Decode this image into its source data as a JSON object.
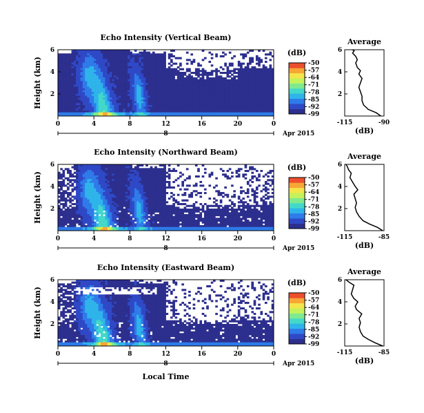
{
  "chart_data": [
    {
      "type": "heatmap",
      "title": "Echo Intensity (Vertical Beam)",
      "xlabel": "",
      "ylabel": "Height (km)",
      "xlim": [
        0,
        24
      ],
      "ylim": [
        0,
        6
      ],
      "x_ticks": [
        "0",
        "4",
        "8",
        "12",
        "16",
        "20",
        "0"
      ],
      "y_ticks": [
        "2",
        "4",
        "6"
      ],
      "date_label": "8",
      "date_suffix": "Apr 2015",
      "colorbar": {
        "title": "(dB)",
        "ticks": [
          "-50",
          "-57",
          "-64",
          "-71",
          "-78",
          "-85",
          "-92",
          "-99"
        ],
        "range": [
          -99,
          -50
        ]
      },
      "description": "background about -95 dB below about 5.5 km; enhanced echo plumes near 3-6 h and 9-10 h reaching about 5 km; strongest near surface around 5-6 h; no data above about 4 km after 12 h"
    },
    {
      "type": "line",
      "title": "Average",
      "xlabel": "(dB)",
      "ylabel": "",
      "xlim": [
        -115,
        -90
      ],
      "x_ticks": [
        "-115",
        "-90"
      ],
      "y_ticks": [
        "2",
        "4",
        "6"
      ],
      "ylim": [
        0,
        6
      ],
      "x": [
        -92,
        -95,
        -100,
        -103,
        -104,
        -104,
        -105,
        -106,
        -105,
        -104,
        -106,
        -105,
        -107,
        -108,
        -107,
        -108,
        -110,
        -109,
        -110
      ],
      "y": [
        0.0,
        0.3,
        0.6,
        1.0,
        1.4,
        1.8,
        2.2,
        2.6,
        3.0,
        3.4,
        3.8,
        4.1,
        4.4,
        4.8,
        5.1,
        5.4,
        5.7,
        5.9,
        6.0
      ]
    },
    {
      "type": "heatmap",
      "title": "Echo Intensity (Northward Beam)",
      "xlabel": "",
      "ylabel": "Height (km)",
      "xlim": [
        0,
        24
      ],
      "ylim": [
        0,
        6
      ],
      "x_ticks": [
        "0",
        "4",
        "8",
        "12",
        "16",
        "20",
        "0"
      ],
      "y_ticks": [
        "2",
        "4",
        "6"
      ],
      "date_label": "8",
      "date_suffix": "Apr 2015",
      "colorbar": {
        "title": "(dB)",
        "ticks": [
          "-50",
          "-57",
          "-64",
          "-71",
          "-78",
          "-85",
          "-92",
          "-99"
        ],
        "range": [
          -99,
          -50
        ]
      },
      "description": "similar structure; scattered missing data at low levels; gaps above about 2 km after 12 h"
    },
    {
      "type": "line",
      "title": "Average",
      "xlabel": "(dB)",
      "ylabel": "",
      "xlim": [
        -115,
        -85
      ],
      "x_ticks": [
        "-115",
        "-85"
      ],
      "y_ticks": [
        "2",
        "4",
        "6"
      ],
      "ylim": [
        0,
        6
      ],
      "x": [
        -86,
        -90,
        -96,
        -101,
        -104,
        -106,
        -107,
        -106,
        -107,
        -108,
        -105,
        -107,
        -109,
        -111,
        -110,
        -112,
        -113,
        -114
      ],
      "y": [
        0.0,
        0.3,
        0.6,
        0.9,
        1.3,
        1.7,
        2.1,
        2.5,
        2.9,
        3.3,
        3.7,
        4.0,
        4.4,
        4.8,
        5.2,
        5.5,
        5.8,
        6.0
      ]
    },
    {
      "type": "heatmap",
      "title": "Echo Intensity (Eastward Beam)",
      "xlabel": "Local Time",
      "ylabel": "Height (km)",
      "xlim": [
        0,
        24
      ],
      "ylim": [
        0,
        6
      ],
      "x_ticks": [
        "0",
        "4",
        "8",
        "12",
        "16",
        "20",
        "0"
      ],
      "y_ticks": [
        "2",
        "4",
        "6"
      ],
      "date_label": "8",
      "date_suffix": "Apr 2015",
      "colorbar": {
        "title": "(dB)",
        "ticks": [
          "-50",
          "-57",
          "-64",
          "-71",
          "-78",
          "-85",
          "-92",
          "-99"
        ],
        "range": [
          -99,
          -50
        ]
      },
      "description": "similar structure; missing-data band near 5 km from 2-10 h; gaps after 12 h"
    },
    {
      "type": "line",
      "title": "Average",
      "xlabel": "(dB)",
      "ylabel": "",
      "xlim": [
        -115,
        -85
      ],
      "x_ticks": [
        "-115",
        "-85"
      ],
      "y_ticks": [
        "2",
        "4",
        "6"
      ],
      "ylim": [
        0,
        6
      ],
      "x": [
        -86,
        -92,
        -97,
        -101,
        -103,
        -104,
        -103,
        -104,
        -102,
        -106,
        -107,
        -105,
        -108,
        -110,
        -109,
        -108,
        -112,
        -114
      ],
      "y": [
        0.0,
        0.3,
        0.6,
        0.9,
        1.3,
        1.7,
        2.1,
        2.5,
        2.9,
        3.3,
        3.6,
        4.0,
        4.3,
        4.7,
        5.1,
        5.5,
        5.8,
        6.0
      ]
    }
  ]
}
